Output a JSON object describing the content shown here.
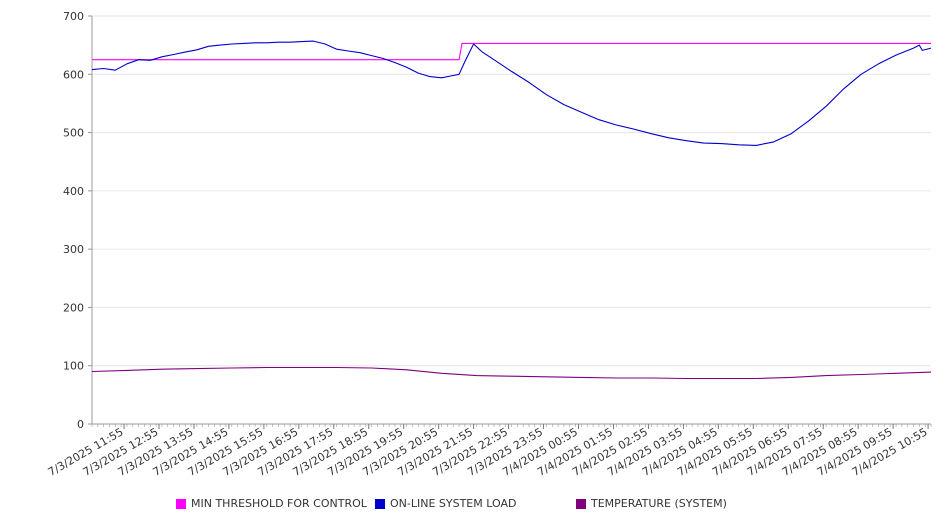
{
  "chart_data": {
    "type": "line",
    "ylim": [
      0,
      700
    ],
    "yticks": [
      0,
      100,
      200,
      300,
      400,
      500,
      600,
      700
    ],
    "grid": true,
    "legend_position": "bottom",
    "x_tick_labels": [
      "7/3/2025 11:55",
      "7/3/2025 12:55",
      "7/3/2025 13:55",
      "7/3/2025 14:55",
      "7/3/2025 15:55",
      "7/3/2025 16:55",
      "7/3/2025 17:55",
      "7/3/2025 18:55",
      "7/3/2025 19:55",
      "7/3/2025 20:55",
      "7/3/2025 21:55",
      "7/3/2025 22:55",
      "7/3/2025 23:55",
      "7/4/2025 00:55",
      "7/4/2025 01:55",
      "7/4/2025 02:55",
      "7/4/2025 03:55",
      "7/4/2025 04:55",
      "7/4/2025 05:55",
      "7/4/2025 06:55",
      "7/4/2025 07:55",
      "7/4/2025 08:55",
      "7/4/2025 09:55",
      "7/4/2025 10:55"
    ],
    "x_range": [
      "7/3/2025 11:00",
      "7/4/2025 11:00"
    ],
    "series": [
      {
        "name": "MIN THRESHOLD FOR CONTROL",
        "color": "#ff00ff",
        "points": [
          [
            "7/3/2025 11:00",
            625
          ],
          [
            "7/3/2025 21:30",
            625
          ],
          [
            "7/3/2025 21:35",
            653
          ],
          [
            "7/4/2025 11:00",
            653
          ]
        ]
      },
      {
        "name": "ON-LINE SYSTEM LOAD",
        "color": "#0000cc",
        "points": [
          [
            "7/3/2025 11:00",
            608
          ],
          [
            "7/3/2025 11:20",
            610
          ],
          [
            "7/3/2025 11:40",
            607
          ],
          [
            "7/3/2025 12:00",
            618
          ],
          [
            "7/3/2025 12:20",
            625
          ],
          [
            "7/3/2025 12:40",
            624
          ],
          [
            "7/3/2025 13:00",
            630
          ],
          [
            "7/3/2025 13:20",
            634
          ],
          [
            "7/3/2025 13:40",
            638
          ],
          [
            "7/3/2025 14:00",
            642
          ],
          [
            "7/3/2025 14:20",
            648
          ],
          [
            "7/3/2025 14:40",
            650
          ],
          [
            "7/3/2025 15:00",
            652
          ],
          [
            "7/3/2025 15:20",
            653
          ],
          [
            "7/3/2025 15:40",
            654
          ],
          [
            "7/3/2025 16:00",
            654
          ],
          [
            "7/3/2025 16:20",
            655
          ],
          [
            "7/3/2025 16:40",
            655
          ],
          [
            "7/3/2025 17:00",
            656
          ],
          [
            "7/3/2025 17:20",
            657
          ],
          [
            "7/3/2025 17:40",
            652
          ],
          [
            "7/3/2025 18:00",
            643
          ],
          [
            "7/3/2025 18:20",
            640
          ],
          [
            "7/3/2025 18:40",
            637
          ],
          [
            "7/3/2025 19:00",
            632
          ],
          [
            "7/3/2025 19:20",
            627
          ],
          [
            "7/3/2025 19:40",
            620
          ],
          [
            "7/3/2025 20:00",
            612
          ],
          [
            "7/3/2025 20:20",
            602
          ],
          [
            "7/3/2025 20:40",
            596
          ],
          [
            "7/3/2025 21:00",
            594
          ],
          [
            "7/3/2025 21:20",
            598
          ],
          [
            "7/3/2025 21:30",
            600
          ],
          [
            "7/3/2025 21:40",
            622
          ],
          [
            "7/3/2025 21:55",
            652
          ],
          [
            "7/3/2025 22:10",
            638
          ],
          [
            "7/3/2025 22:30",
            625
          ],
          [
            "7/3/2025 23:00",
            605
          ],
          [
            "7/3/2025 23:30",
            586
          ],
          [
            "7/4/2025 00:00",
            565
          ],
          [
            "7/4/2025 00:30",
            548
          ],
          [
            "7/4/2025 01:00",
            535
          ],
          [
            "7/4/2025 01:30",
            522
          ],
          [
            "7/4/2025 02:00",
            513
          ],
          [
            "7/4/2025 02:30",
            506
          ],
          [
            "7/4/2025 03:00",
            498
          ],
          [
            "7/4/2025 03:30",
            491
          ],
          [
            "7/4/2025 04:00",
            486
          ],
          [
            "7/4/2025 04:30",
            482
          ],
          [
            "7/4/2025 05:00",
            481
          ],
          [
            "7/4/2025 05:30",
            479
          ],
          [
            "7/4/2025 06:00",
            478
          ],
          [
            "7/4/2025 06:30",
            484
          ],
          [
            "7/4/2025 07:00",
            498
          ],
          [
            "7/4/2025 07:30",
            520
          ],
          [
            "7/4/2025 08:00",
            545
          ],
          [
            "7/4/2025 08:30",
            575
          ],
          [
            "7/4/2025 09:00",
            600
          ],
          [
            "7/4/2025 09:30",
            618
          ],
          [
            "7/4/2025 10:00",
            633
          ],
          [
            "7/4/2025 10:30",
            645
          ],
          [
            "7/4/2025 10:40",
            650
          ],
          [
            "7/4/2025 10:45",
            641
          ],
          [
            "7/4/2025 11:00",
            645
          ]
        ]
      },
      {
        "name": "TEMPERATURE (SYSTEM)",
        "color": "#800080",
        "points": [
          [
            "7/3/2025 11:00",
            90
          ],
          [
            "7/3/2025 12:00",
            92
          ],
          [
            "7/3/2025 13:00",
            94
          ],
          [
            "7/3/2025 14:00",
            95
          ],
          [
            "7/3/2025 15:00",
            96
          ],
          [
            "7/3/2025 16:00",
            97
          ],
          [
            "7/3/2025 17:00",
            97
          ],
          [
            "7/3/2025 18:00",
            97
          ],
          [
            "7/3/2025 19:00",
            96
          ],
          [
            "7/3/2025 20:00",
            93
          ],
          [
            "7/3/2025 21:00",
            87
          ],
          [
            "7/3/2025 22:00",
            83
          ],
          [
            "7/3/2025 23:00",
            82
          ],
          [
            "7/4/2025 00:00",
            81
          ],
          [
            "7/4/2025 01:00",
            80
          ],
          [
            "7/4/2025 02:00",
            79
          ],
          [
            "7/4/2025 03:00",
            79
          ],
          [
            "7/4/2025 04:00",
            78
          ],
          [
            "7/4/2025 05:00",
            78
          ],
          [
            "7/4/2025 06:00",
            78
          ],
          [
            "7/4/2025 07:00",
            80
          ],
          [
            "7/4/2025 08:00",
            83
          ],
          [
            "7/4/2025 09:00",
            85
          ],
          [
            "7/4/2025 10:00",
            87
          ],
          [
            "7/4/2025 11:00",
            89
          ]
        ]
      }
    ]
  }
}
